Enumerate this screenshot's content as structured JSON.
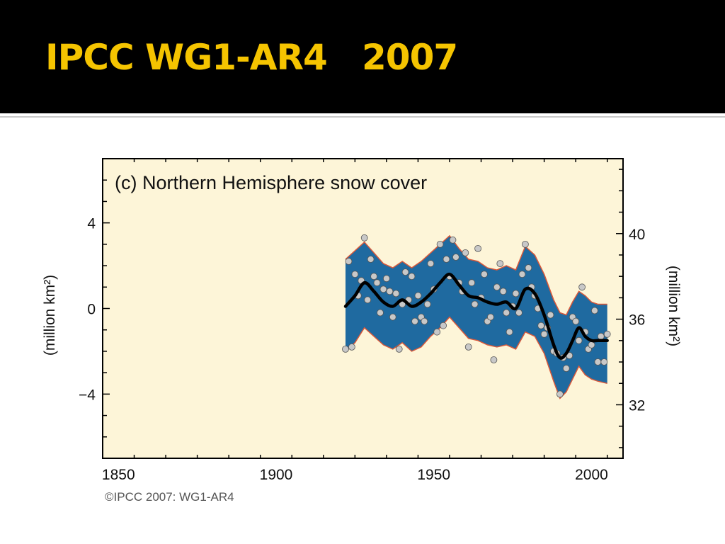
{
  "slide": {
    "title": "IPCC WG1-AR4   2007"
  },
  "colors": {
    "title_bar": "#000000",
    "title_text": "#f5c400",
    "plot_bg": "#fdf5d8",
    "band": "#1f6aa0",
    "band_edge": "#d9583a",
    "points": "#c8c8c8",
    "line": "#000000"
  },
  "chart_data": {
    "type": "line",
    "title": "(c) Northern Hemisphere snow cover",
    "xlabel": "",
    "ylabel": "(million km²)",
    "ylabel_right": "(million km²)",
    "xlim": [
      1845,
      2010
    ],
    "ylim": [
      -7,
      7
    ],
    "ylim_right": [
      29.5,
      43.5
    ],
    "xticks": [
      1850,
      1900,
      1950,
      2000
    ],
    "yticks": [
      {
        "value": 4,
        "label": "4"
      },
      {
        "value": 0,
        "label": "0"
      },
      {
        "value": -4,
        "label": "−4"
      }
    ],
    "yticks_right": [
      {
        "value": 40,
        "label": "40"
      },
      {
        "value": 36,
        "label": "36"
      },
      {
        "value": 32,
        "label": "32"
      }
    ],
    "credit": "©IPCC  2007: WG1-AR4",
    "grid": false,
    "series": [
      {
        "name": "",
        "kind": "smoothed",
        "x": [
          1922,
          1925,
          1928,
          1931,
          1934,
          1937,
          1940,
          1943,
          1946,
          1949,
          1952,
          1955,
          1958,
          1961,
          1964,
          1967,
          1970,
          1973,
          1976,
          1979,
          1982,
          1985,
          1988,
          1990,
          1992,
          1994,
          1996,
          1998,
          2000,
          2002,
          2005
        ],
        "y": [
          0.1,
          0.6,
          1.2,
          0.8,
          0.3,
          0.1,
          0.4,
          0.1,
          0.3,
          0.7,
          1.2,
          1.6,
          1.1,
          0.6,
          0.5,
          0.3,
          0.2,
          0.3,
          0.0,
          0.9,
          0.7,
          -0.3,
          -1.7,
          -2.3,
          -2.1,
          -1.5,
          -0.9,
          -1.3,
          -1.5,
          -1.5,
          -1.5
        ]
      },
      {
        "name": "",
        "kind": "uncertainty_upper",
        "x": [
          1922,
          1925,
          1928,
          1931,
          1934,
          1937,
          1940,
          1943,
          1946,
          1949,
          1952,
          1955,
          1958,
          1961,
          1964,
          1967,
          1970,
          1973,
          1976,
          1979,
          1982,
          1985,
          1988,
          1990,
          1992,
          1994,
          1996,
          1998,
          2000,
          2002,
          2005
        ],
        "y": [
          2.3,
          2.7,
          3.1,
          2.6,
          2.1,
          1.9,
          2.2,
          1.9,
          2.2,
          2.6,
          3.0,
          3.4,
          2.8,
          2.3,
          2.2,
          1.9,
          1.8,
          2.0,
          1.8,
          2.9,
          2.5,
          1.6,
          0.4,
          -0.2,
          -0.3,
          0.3,
          0.8,
          0.6,
          0.3,
          0.2,
          0.2
        ]
      },
      {
        "name": "",
        "kind": "uncertainty_lower",
        "x": [
          1922,
          1925,
          1928,
          1931,
          1934,
          1937,
          1940,
          1943,
          1946,
          1949,
          1952,
          1955,
          1958,
          1961,
          1964,
          1967,
          1970,
          1973,
          1976,
          1979,
          1982,
          1985,
          1988,
          1990,
          1992,
          1994,
          1996,
          1998,
          2000,
          2002,
          2005
        ],
        "y": [
          -2.0,
          -1.6,
          -0.9,
          -1.3,
          -1.7,
          -1.9,
          -1.6,
          -2.0,
          -1.8,
          -1.3,
          -0.9,
          -0.4,
          -0.9,
          -1.4,
          -1.5,
          -1.7,
          -1.8,
          -1.7,
          -1.9,
          -1.1,
          -1.3,
          -2.1,
          -3.4,
          -4.2,
          -3.9,
          -3.3,
          -2.7,
          -3.1,
          -3.3,
          -3.4,
          -3.5
        ]
      },
      {
        "name": "",
        "kind": "annual",
        "x": [
          1922,
          1923,
          1924,
          1925,
          1926,
          1927,
          1928,
          1929,
          1930,
          1931,
          1932,
          1933,
          1934,
          1935,
          1936,
          1937,
          1938,
          1939,
          1940,
          1941,
          1942,
          1943,
          1944,
          1945,
          1946,
          1947,
          1948,
          1949,
          1950,
          1951,
          1952,
          1953,
          1954,
          1955,
          1956,
          1957,
          1958,
          1959,
          1960,
          1961,
          1962,
          1963,
          1964,
          1965,
          1966,
          1967,
          1968,
          1969,
          1970,
          1971,
          1972,
          1973,
          1974,
          1975,
          1976,
          1977,
          1978,
          1979,
          1980,
          1981,
          1982,
          1983,
          1984,
          1985,
          1986,
          1987,
          1988,
          1989,
          1990,
          1991,
          1992,
          1993,
          1994,
          1995,
          1996,
          1997,
          1998,
          1999,
          2000,
          2001,
          2002,
          2003,
          2004,
          2005
        ],
        "y": [
          -1.9,
          2.2,
          -1.8,
          1.6,
          0.6,
          1.3,
          3.3,
          0.4,
          2.3,
          1.5,
          1.2,
          -0.2,
          0.9,
          1.4,
          0.8,
          -0.4,
          0.7,
          -1.9,
          0.2,
          1.7,
          0.4,
          1.5,
          -0.6,
          0.6,
          -0.4,
          -0.6,
          0.2,
          2.1,
          0.9,
          -1.1,
          3.0,
          -0.8,
          2.3,
          1.5,
          3.2,
          2.4,
          1.2,
          0.8,
          2.6,
          -1.8,
          1.2,
          0.2,
          2.8,
          0.5,
          1.6,
          -0.6,
          -0.4,
          -2.4,
          1.0,
          2.1,
          0.8,
          -0.2,
          -1.1,
          0.1,
          0.7,
          -0.2,
          1.6,
          3.0,
          1.9,
          1.0,
          0.6,
          0.0,
          -0.8,
          -1.2,
          -0.9,
          -0.3,
          -2.0,
          -2.1,
          -4.0,
          -2.3,
          -2.8,
          -2.2,
          -0.4,
          -0.6,
          -1.5,
          1.0,
          -1.1,
          -1.9,
          -1.7,
          -0.1,
          -2.5,
          -1.3,
          -2.5,
          -1.2
        ]
      }
    ]
  }
}
